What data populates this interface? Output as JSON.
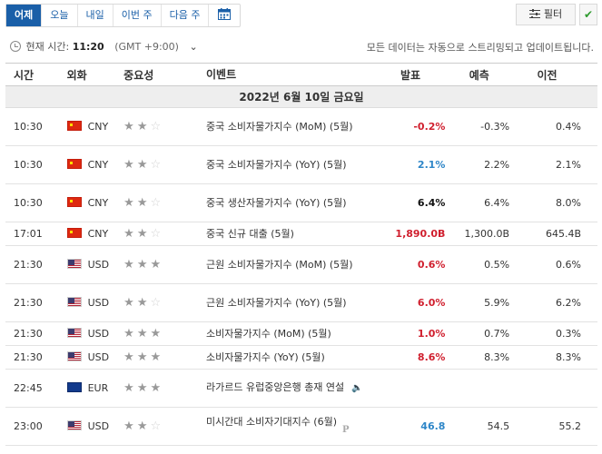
{
  "tabs": [
    {
      "label": "어제",
      "active": true
    },
    {
      "label": "오늘",
      "active": false
    },
    {
      "label": "내일",
      "active": false
    },
    {
      "label": "이번 주",
      "active": false
    },
    {
      "label": "다음 주",
      "active": false
    }
  ],
  "filter_label": "필터",
  "timebar": {
    "prefix": "현재 시간:",
    "time": "11:20",
    "gmt": "(GMT +9:00)"
  },
  "notice": "모든 데이터는 자동으로 스트리밍되고 업데이트됩니다.",
  "headers": {
    "time": "시간",
    "currency": "외화",
    "importance": "중요성",
    "event": "이벤트",
    "actual": "발표",
    "forecast": "예측",
    "previous": "이전"
  },
  "date_label": "2022년 6월 10일 금요일",
  "rows": [
    {
      "time": "10:30",
      "flag": "cn",
      "currency": "CNY",
      "stars": 2,
      "event": "중국 소비자물가지수 (MoM) (5월)",
      "actual": "-0.2%",
      "actual_color": "red",
      "forecast": "-0.3%",
      "previous": "0.4%"
    },
    {
      "time": "10:30",
      "flag": "cn",
      "currency": "CNY",
      "stars": 2,
      "event": "중국 소비자물가지수 (YoY) (5월)",
      "actual": "2.1%",
      "actual_color": "blue",
      "forecast": "2.2%",
      "previous": "2.1%"
    },
    {
      "time": "10:30",
      "flag": "cn",
      "currency": "CNY",
      "stars": 2,
      "event": "중국 생산자물가지수 (YoY) (5월)",
      "actual": "6.4%",
      "actual_color": "black",
      "forecast": "6.4%",
      "previous": "8.0%"
    },
    {
      "time": "17:01",
      "flag": "cn",
      "currency": "CNY",
      "stars": 2,
      "event": "중국 신규 대출 (5월)",
      "actual": "1,890.0B",
      "actual_color": "red",
      "forecast": "1,300.0B",
      "previous": "645.4B"
    },
    {
      "time": "21:30",
      "flag": "us",
      "currency": "USD",
      "stars": 3,
      "event": "근원 소비자물가지수 (MoM) (5월)",
      "actual": "0.6%",
      "actual_color": "red",
      "forecast": "0.5%",
      "previous": "0.6%"
    },
    {
      "time": "21:30",
      "flag": "us",
      "currency": "USD",
      "stars": 2,
      "event": "근원 소비자물가지수 (YoY) (5월)",
      "actual": "6.0%",
      "actual_color": "red",
      "forecast": "5.9%",
      "previous": "6.2%"
    },
    {
      "time": "21:30",
      "flag": "us",
      "currency": "USD",
      "stars": 3,
      "event": "소비자물가지수 (MoM) (5월)",
      "actual": "1.0%",
      "actual_color": "red",
      "forecast": "0.7%",
      "previous": "0.3%"
    },
    {
      "time": "21:30",
      "flag": "us",
      "currency": "USD",
      "stars": 3,
      "event": "소비자물가지수 (YoY) (5월)",
      "actual": "8.6%",
      "actual_color": "red",
      "forecast": "8.3%",
      "previous": "8.3%"
    },
    {
      "time": "22:45",
      "flag": "eu",
      "currency": "EUR",
      "stars": 3,
      "event": "라가르드 유럽중앙은행 총재 연설",
      "actual": "",
      "actual_color": "black",
      "forecast": "",
      "previous": "",
      "speech": true
    },
    {
      "time": "23:00",
      "flag": "us",
      "currency": "USD",
      "stars": 2,
      "event": "미시간대 소비자기대지수 (6월)",
      "actual": "46.8",
      "actual_color": "blue",
      "forecast": "54.5",
      "previous": "55.2",
      "preliminary": true
    }
  ]
}
